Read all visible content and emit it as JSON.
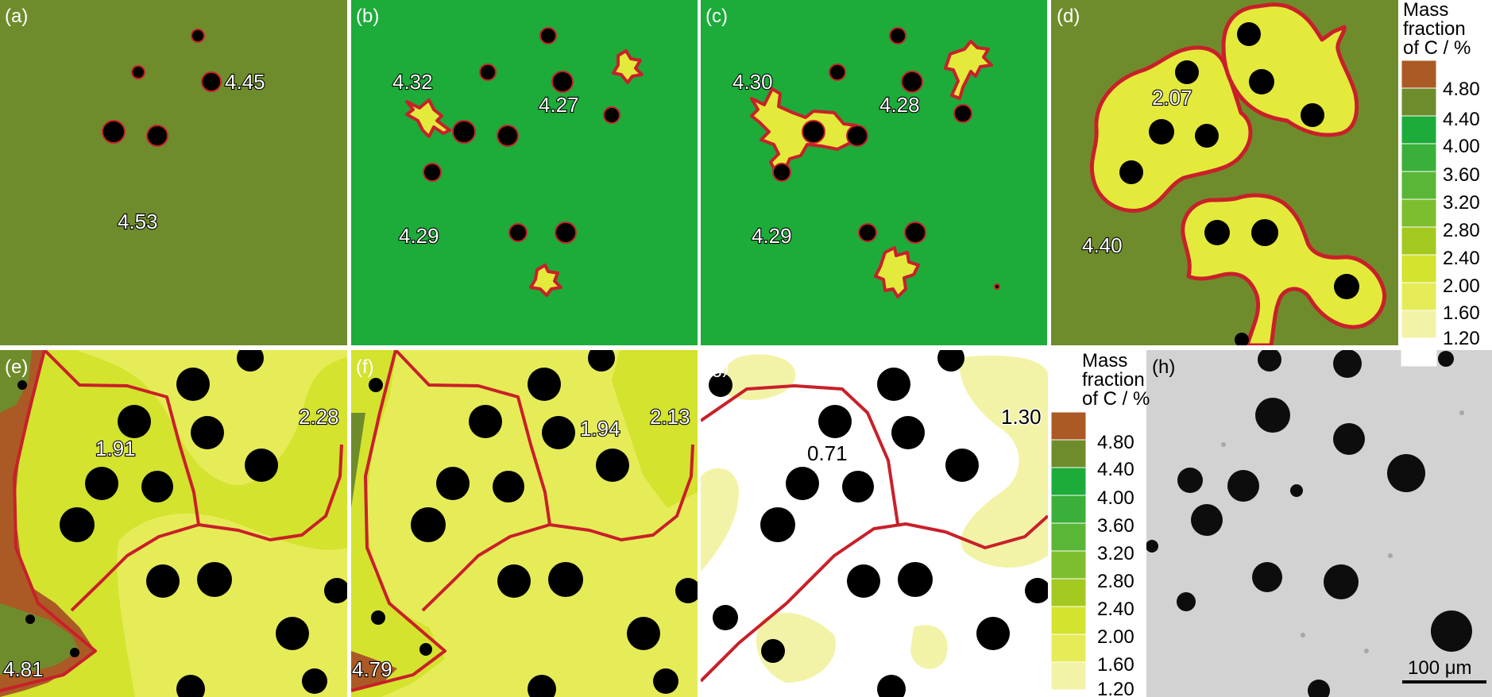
{
  "figure": {
    "panels": [
      {
        "label": "(a)",
        "values": [
          "4.45",
          "4.53"
        ]
      },
      {
        "label": "(b)",
        "values": [
          "4.32",
          "4.27",
          "4.29"
        ]
      },
      {
        "label": "(c)",
        "values": [
          "4.30",
          "4.28",
          "4.29"
        ]
      },
      {
        "label": "(d)",
        "values": [
          "2.07",
          "4.40"
        ]
      },
      {
        "label": "(e)",
        "values": [
          "2.28",
          "1.91",
          "4.81"
        ]
      },
      {
        "label": "(f)",
        "values": [
          "1.94",
          "2.13",
          "4.79"
        ]
      },
      {
        "label": "(g)",
        "values": [
          "1.30",
          "0.71"
        ]
      },
      {
        "label": "(h)",
        "values": []
      }
    ],
    "legend_top": {
      "title_lines": [
        "Mass",
        "fraction",
        "of C / %"
      ],
      "ticks": [
        "4.80",
        "4.40",
        "4.00",
        "3.60",
        "3.20",
        "2.80",
        "2.40",
        "2.00",
        "1.60",
        "1.20"
      ]
    },
    "legend_bottom": {
      "title_lines": [
        "Mass",
        "fraction",
        "of C / %"
      ],
      "ticks": [
        "4.80",
        "4.40",
        "4.00",
        "3.60",
        "3.20",
        "2.80",
        "2.40",
        "2.00",
        "1.60",
        "1.20"
      ]
    },
    "scale_bar": "100 μm",
    "colors": {
      "boundary": "#c8202a",
      "swatches": [
        "#ab5a25",
        "#6f8c2c",
        "#1dab3a",
        "#3aaf3a",
        "#5ab636",
        "#7dbe2e",
        "#a3c920",
        "#d4e32e",
        "#e6ec57",
        "#f3f3a8",
        "#ffffff"
      ]
    }
  }
}
